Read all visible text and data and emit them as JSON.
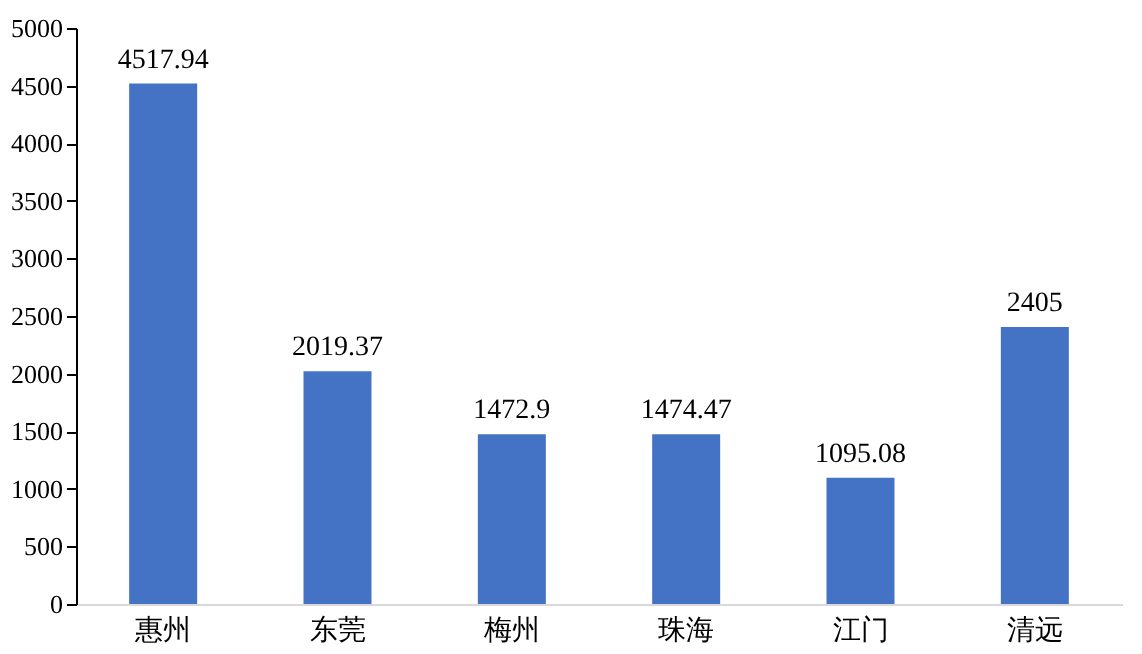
{
  "chart_data": {
    "type": "bar",
    "categories": [
      "惠州",
      "东莞",
      "梅州",
      "珠海",
      "江门",
      "清远"
    ],
    "values": [
      4517.94,
      2019.37,
      1472.9,
      1474.47,
      1095.08,
      2405
    ],
    "color": "#4472c4",
    "ylim": [
      0,
      5000
    ],
    "yticks": [
      0,
      500,
      1000,
      1500,
      2000,
      2500,
      3000,
      3500,
      4000,
      4500,
      5000
    ],
    "data_labels": true,
    "grid": false
  }
}
